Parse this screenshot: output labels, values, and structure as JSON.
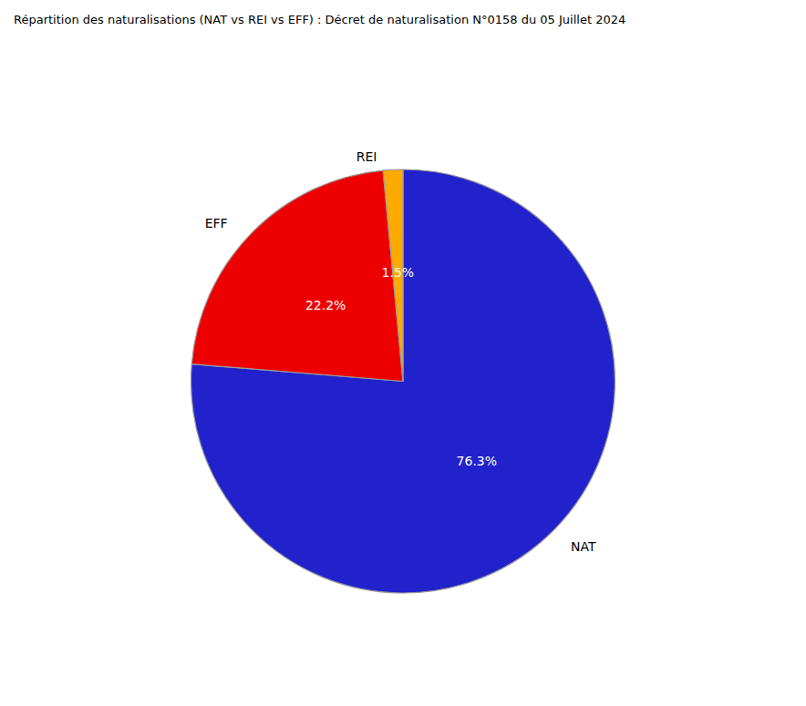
{
  "chart_data": {
    "type": "pie",
    "title": "Répartition des naturalisations (NAT vs REI vs EFF) : Décret de naturalisation N°0158 du 05 Juillet 2024",
    "categories": [
      "NAT",
      "EFF",
      "REI"
    ],
    "values": [
      76.3,
      22.2,
      1.5
    ],
    "value_labels": [
      "76.3%",
      "22.2%",
      "1.5%"
    ],
    "colors": [
      "#2222cc",
      "#ee0000",
      "#ffaa00"
    ],
    "data_labels": true
  }
}
